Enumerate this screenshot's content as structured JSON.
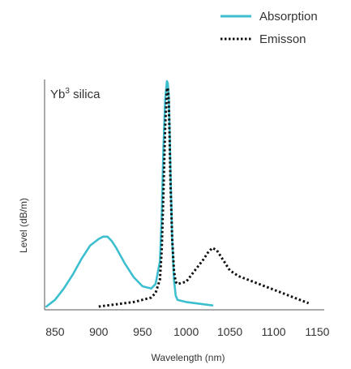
{
  "chart_data": {
    "type": "line",
    "title": "",
    "annotation": {
      "base": "Yb",
      "superscript": "3",
      "suffix": " silica"
    },
    "xlabel": "Wavelength (nm)",
    "ylabel": "Level (dB/m)",
    "xlim": [
      838,
      1158
    ],
    "ylim": [
      0,
      1.0
    ],
    "x_ticks": [
      850,
      900,
      950,
      1000,
      1050,
      1100,
      1150
    ],
    "x_tick_labels": [
      "850",
      "900",
      "950",
      "1000",
      "1050",
      "1100",
      "1150"
    ],
    "y_ticks_shown": false,
    "grid": false,
    "legend_position": "top-right",
    "series": [
      {
        "name": "Absorption",
        "style": "solid",
        "color": "#3dbfcf",
        "x": [
          840,
          850,
          860,
          870,
          880,
          890,
          900,
          905,
          910,
          915,
          920,
          930,
          940,
          950,
          960,
          965,
          970,
          972,
          974,
          976,
          978,
          979,
          980,
          981,
          982,
          984,
          986,
          988,
          990,
          1000,
          1010,
          1020,
          1030
        ],
        "y": [
          0.0,
          0.03,
          0.08,
          0.14,
          0.21,
          0.27,
          0.3,
          0.31,
          0.31,
          0.29,
          0.26,
          0.19,
          0.13,
          0.09,
          0.08,
          0.1,
          0.2,
          0.4,
          0.7,
          0.92,
          1.0,
          0.99,
          0.94,
          0.8,
          0.6,
          0.3,
          0.12,
          0.05,
          0.03,
          0.02,
          0.015,
          0.01,
          0.005
        ]
      },
      {
        "name": "Emisson",
        "style": "dotted",
        "color": "#111111",
        "x": [
          900,
          910,
          920,
          930,
          940,
          950,
          960,
          965,
          970,
          972,
          974,
          976,
          978,
          979,
          980,
          981,
          982,
          984,
          986,
          988,
          990,
          1000,
          1010,
          1020,
          1025,
          1030,
          1035,
          1040,
          1050,
          1060,
          1070,
          1080,
          1090,
          1100,
          1110,
          1120,
          1130,
          1140
        ],
        "y": [
          0.0,
          0.005,
          0.01,
          0.015,
          0.02,
          0.03,
          0.04,
          0.06,
          0.12,
          0.25,
          0.5,
          0.8,
          0.96,
          0.97,
          0.92,
          0.75,
          0.55,
          0.3,
          0.16,
          0.11,
          0.1,
          0.11,
          0.16,
          0.21,
          0.24,
          0.26,
          0.25,
          0.22,
          0.16,
          0.135,
          0.12,
          0.105,
          0.09,
          0.075,
          0.06,
          0.045,
          0.03,
          0.015
        ]
      }
    ]
  }
}
